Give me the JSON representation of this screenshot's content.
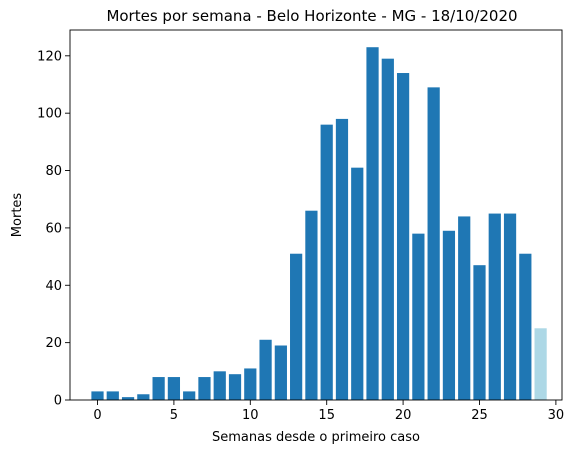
{
  "chart_data": {
    "type": "bar",
    "title": "Mortes por semana - Belo Horizonte - MG - 18/10/2020",
    "xlabel": "Semanas desde o primeiro caso",
    "ylabel": "Mortes",
    "xlim": [
      -1.8,
      30.4
    ],
    "ylim": [
      0,
      129
    ],
    "xticks": [
      0,
      5,
      10,
      15,
      20,
      25,
      30
    ],
    "yticks": [
      0,
      20,
      40,
      60,
      80,
      100,
      120
    ],
    "grid": false,
    "colors": {
      "bar": "#1f77b4",
      "last_bar": "#add8e6",
      "axis": "#000000"
    },
    "x": [
      0,
      1,
      2,
      3,
      4,
      5,
      6,
      7,
      8,
      9,
      10,
      11,
      12,
      13,
      14,
      15,
      16,
      17,
      18,
      19,
      20,
      21,
      22,
      23,
      24,
      25,
      26,
      27,
      28,
      29
    ],
    "values": [
      3,
      3,
      1,
      2,
      8,
      8,
      3,
      8,
      10,
      9,
      11,
      21,
      19,
      51,
      66,
      96,
      98,
      81,
      123,
      119,
      114,
      58,
      109,
      59,
      64,
      47,
      65,
      65,
      51,
      25
    ]
  }
}
